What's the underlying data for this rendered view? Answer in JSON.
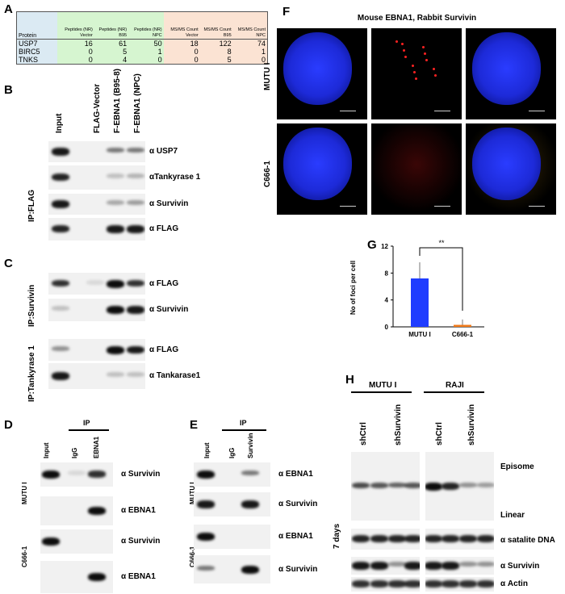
{
  "panels": {
    "A": "A",
    "B": "B",
    "C": "C",
    "D": "D",
    "E": "E",
    "F": "F",
    "G": "G",
    "H": "H"
  },
  "table": {
    "headers": [
      "Protein",
      "Peptides (NR) Vector",
      "Peptides (NR) B95",
      "Peptides (NR) NPC",
      "MS/MS Count Vector",
      "MS/MS Count B95",
      "MS/MS Count NPC"
    ],
    "rows": [
      [
        "USP7",
        "16",
        "61",
        "50",
        "18",
        "122",
        "74"
      ],
      [
        "BIRC5",
        "0",
        "5",
        "1",
        "0",
        "8",
        "1"
      ],
      [
        "TNKS",
        "0",
        "4",
        "0",
        "0",
        "5",
        "0"
      ]
    ]
  },
  "F": {
    "title": "Mouse EBNA1, Rabbit Survivin",
    "rows": [
      "MUTU I",
      "C666-1"
    ]
  },
  "B": {
    "columns": [
      "Input",
      "FLAG-Vector",
      "F-EBNA1 (B95-8)",
      "F-EBNA1 (NPC)"
    ],
    "ip": "IP:FLAG",
    "blots": [
      "α USP7",
      "αTankyrase 1",
      "α Survivin",
      "α FLAG"
    ]
  },
  "C": {
    "ip1": "IP:Survivin",
    "ip2": "IP:Tankyrase 1",
    "blots": [
      "α FLAG",
      "α Survivin",
      "α FLAG",
      "α Tankarase1"
    ]
  },
  "D": {
    "ip": "IP",
    "columns": [
      "Input",
      "IgG",
      "EBNA1"
    ],
    "rows": [
      "MUTU I",
      "C666-1"
    ],
    "blots": [
      "α Survivin",
      "α EBNA1",
      "α Survivin",
      "α EBNA1"
    ]
  },
  "E": {
    "ip": "IP",
    "columns": [
      "Input",
      "IgG",
      "Survivin"
    ],
    "rows": [
      "MUTU I",
      "C666-1"
    ],
    "blots": [
      "α EBNA1",
      "α Survivin",
      "α EBNA1",
      "α Survivin"
    ]
  },
  "chart_data": {
    "type": "bar",
    "categories": [
      "MUTU I",
      "C666-1"
    ],
    "values": [
      7.2,
      0.3
    ],
    "errors": [
      2.4,
      0.8
    ],
    "colors": [
      "#1f3cff",
      "#f07a1a"
    ],
    "ylabel": "No of foci per cell",
    "ylim": [
      0,
      12
    ],
    "yticks": [
      "0",
      "4",
      "8",
      "12"
    ],
    "annotation": "**"
  },
  "H": {
    "groups": [
      "MUTU I",
      "RAJI"
    ],
    "lanes": [
      "shCtrl",
      "shSurvivin",
      "shCtrl",
      "shSurvivin"
    ],
    "time": "7 days",
    "labels": [
      "Episome",
      "Linear",
      "α satalite DNA",
      "α Survivin",
      "α Actin"
    ]
  }
}
